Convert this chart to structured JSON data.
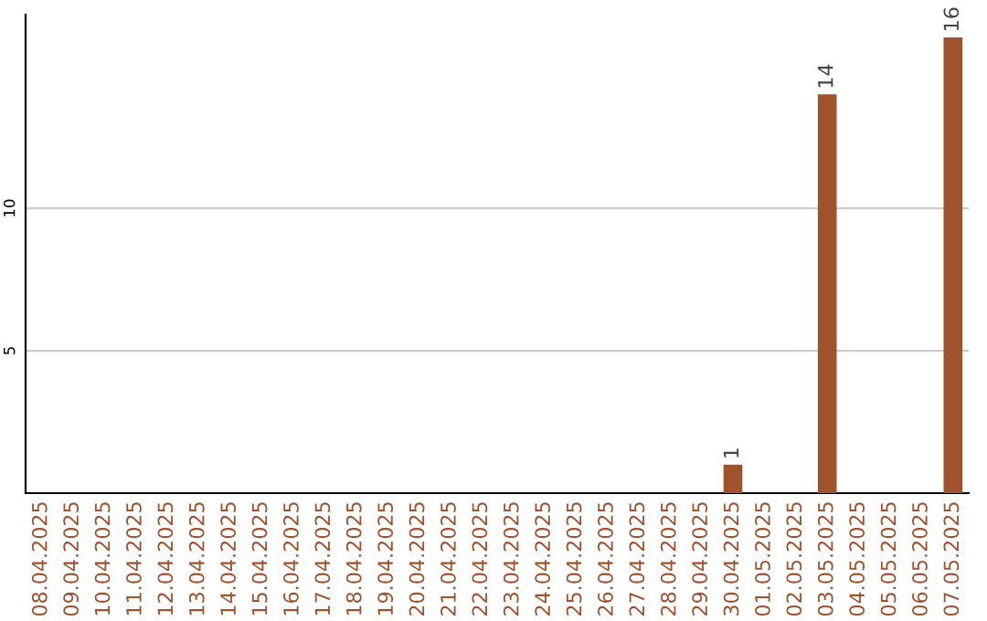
{
  "chart_data": {
    "type": "bar",
    "categories": [
      "08.04.2025",
      "09.04.2025",
      "10.04.2025",
      "11.04.2025",
      "12.04.2025",
      "13.04.2025",
      "14.04.2025",
      "15.04.2025",
      "16.04.2025",
      "17.04.2025",
      "18.04.2025",
      "19.04.2025",
      "20.04.2025",
      "21.04.2025",
      "22.04.2025",
      "23.04.2025",
      "24.04.2025",
      "25.04.2025",
      "26.04.2025",
      "27.04.2025",
      "28.04.2025",
      "29.04.2025",
      "30.04.2025",
      "01.05.2025",
      "02.05.2025",
      "03.05.2025",
      "04.05.2025",
      "05.05.2025",
      "06.05.2025",
      "07.05.2025"
    ],
    "values": [
      0,
      0,
      0,
      0,
      0,
      0,
      0,
      0,
      0,
      0,
      0,
      0,
      0,
      0,
      0,
      0,
      0,
      0,
      0,
      0,
      0,
      0,
      1,
      0,
      0,
      14,
      0,
      0,
      0,
      16
    ],
    "value_labels": [
      null,
      null,
      null,
      null,
      null,
      null,
      null,
      null,
      null,
      null,
      null,
      null,
      null,
      null,
      null,
      null,
      null,
      null,
      null,
      null,
      null,
      null,
      "1",
      null,
      null,
      "14",
      null,
      null,
      null,
      "16"
    ],
    "color": "#a0522d",
    "ylim": [
      0,
      16.8
    ],
    "yticks": [
      5,
      10
    ],
    "grid": "y"
  }
}
